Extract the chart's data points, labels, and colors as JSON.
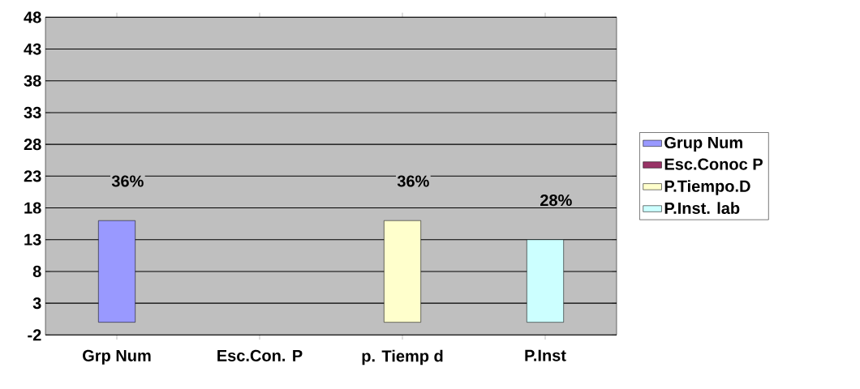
{
  "chart_data": {
    "type": "bar",
    "categories": [
      "Grp Num",
      "Esc.Con. P",
      "p. Tiemp d",
      "P.Inst"
    ],
    "series": [
      {
        "name": "Grup Num",
        "color": "#9999ff",
        "values": [
          16,
          null,
          null,
          null
        ]
      },
      {
        "name": "Esc.Conoc P",
        "color": "#993366",
        "values": [
          null,
          null,
          null,
          null
        ]
      },
      {
        "name": "P.Tiempo.D",
        "color": "#ffffcc",
        "values": [
          null,
          null,
          16,
          null
        ]
      },
      {
        "name": "P.Inst. lab",
        "color": "#ccffff",
        "values": [
          null,
          null,
          null,
          13
        ]
      }
    ],
    "annotations": [
      "36%",
      "36%",
      "28%"
    ],
    "ylim": [
      -2,
      48
    ],
    "yticks": [
      -2,
      3,
      8,
      13,
      18,
      23,
      28,
      33,
      38,
      43,
      48
    ],
    "grid": "y",
    "legend": "right"
  }
}
